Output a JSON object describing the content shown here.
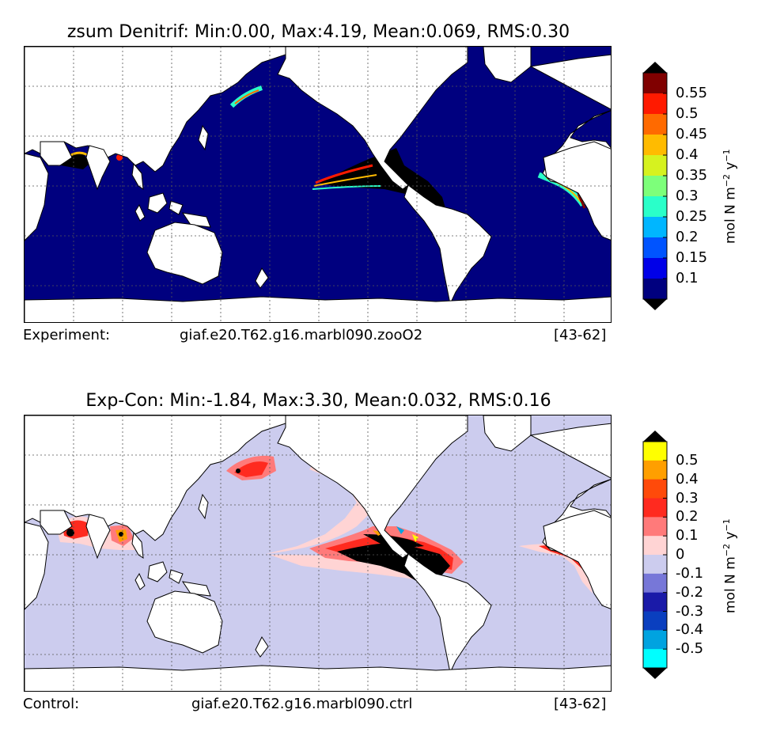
{
  "panels": [
    {
      "title": "zsum Denitrif: Min:0.00, Max:4.19, Mean:0.069, RMS:0.30",
      "caption_left": "Experiment:",
      "caption_mid": "giaf.e20.T62.g16.marbl090.zooO2",
      "caption_right": "[43-62]",
      "colorbar": {
        "ticks": [
          "0.55",
          "0.5",
          "0.45",
          "0.4",
          "0.35",
          "0.3",
          "0.25",
          "0.2",
          "0.15",
          "0.1"
        ],
        "label_base": "mol N m",
        "label_exp1": "−2",
        "label_mid": " y",
        "label_exp2": "−1",
        "colors": [
          "#800000",
          "#ff1a00",
          "#ff6a00",
          "#ffbb00",
          "#d6f21f",
          "#7dff7a",
          "#2affc9",
          "#00b6ff",
          "#0054ff",
          "#0000e8",
          "#00007f"
        ],
        "extend_top": "#000000",
        "extend_bottom": "#000000"
      }
    },
    {
      "title": "Exp-Con: Min:-1.84, Max:3.30, Mean:0.032, RMS:0.16",
      "caption_left": "Control:",
      "caption_mid": "giaf.e20.T62.g16.marbl090.ctrl",
      "caption_right": "[43-62]",
      "colorbar": {
        "ticks": [
          "0.5",
          "0.4",
          "0.3",
          "0.2",
          "0.1",
          "0",
          "-0.1",
          "-0.2",
          "-0.3",
          "-0.4",
          "-0.5"
        ],
        "label_base": "mol N m",
        "label_exp1": "−2",
        "label_mid": " y",
        "label_exp2": "−1",
        "colors": [
          "#ffff00",
          "#ff9f00",
          "#ff4a0a",
          "#ff2a1f",
          "#ff7a7a",
          "#ffd4d4",
          "#ccccee",
          "#7777d8",
          "#1a1aa8",
          "#0a3fbf",
          "#00a3e0",
          "#00ffff"
        ],
        "extend_top": "#000000",
        "extend_bottom": "#000000"
      }
    }
  ],
  "colors": {
    "ocean_top": "#00007f",
    "ocean_bottom": "#ccccee",
    "land": "#ffffff",
    "hotspot_black": "#000000"
  }
}
